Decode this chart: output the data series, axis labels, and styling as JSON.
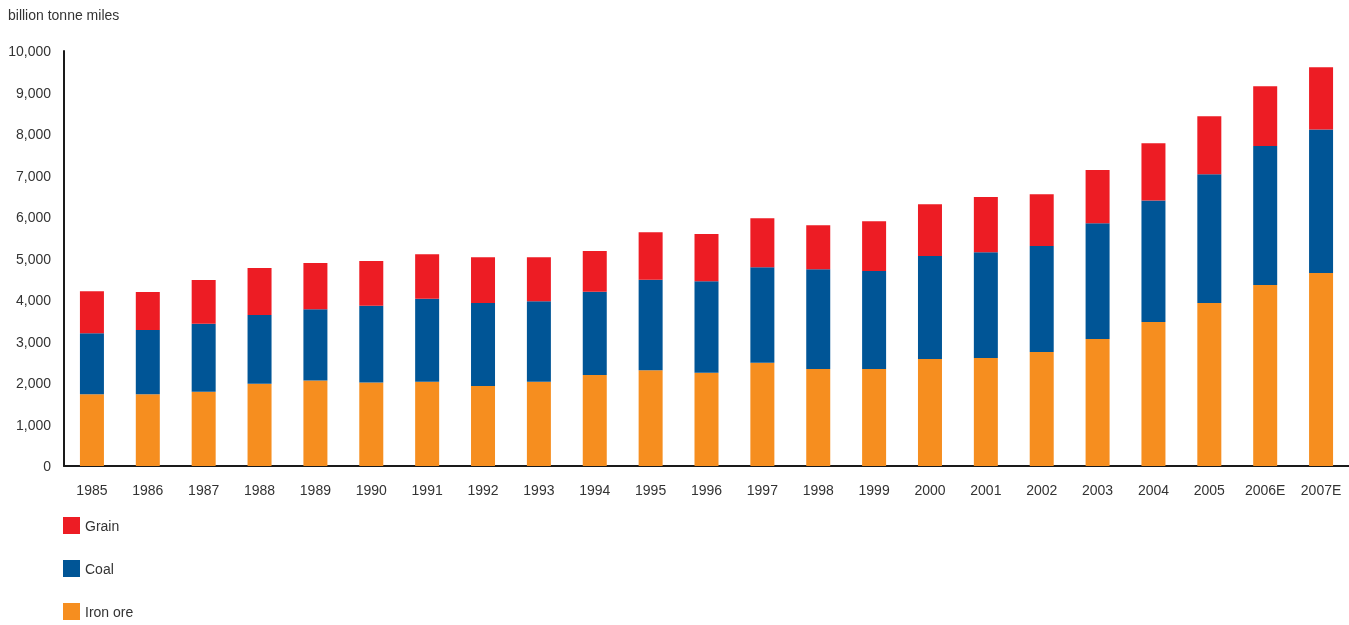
{
  "chart_data": {
    "type": "bar",
    "stacked": true,
    "ylabel": "billion tonne miles",
    "categories": [
      "1985",
      "1986",
      "1987",
      "1988",
      "1989",
      "1990",
      "1991",
      "1992",
      "1993",
      "1994",
      "1995",
      "1996",
      "1997",
      "1998",
      "1999",
      "2000",
      "2001",
      "2002",
      "2003",
      "2004",
      "2005",
      "2006E",
      "2007E"
    ],
    "series": [
      {
        "name": "Iron ore",
        "color": "#f68e1f",
        "values": [
          1730,
          1730,
          1790,
          1980,
          2060,
          2010,
          2030,
          1930,
          2030,
          2190,
          2310,
          2250,
          2490,
          2340,
          2340,
          2580,
          2600,
          2750,
          3060,
          3470,
          3930,
          4360,
          4650
        ]
      },
      {
        "name": "Coal",
        "color": "#005596",
        "values": [
          1470,
          1550,
          1640,
          1660,
          1720,
          1850,
          2000,
          2000,
          1940,
          2010,
          2180,
          2200,
          2300,
          2400,
          2360,
          2480,
          2550,
          2550,
          2790,
          2930,
          3100,
          3350,
          3460
        ]
      },
      {
        "name": "Grain",
        "color": "#ed1c24",
        "values": [
          1010,
          910,
          1050,
          1130,
          1110,
          1080,
          1070,
          1100,
          1060,
          980,
          1140,
          1140,
          1180,
          1060,
          1200,
          1250,
          1330,
          1250,
          1280,
          1380,
          1400,
          1440,
          1500
        ]
      }
    ],
    "ylim": [
      0,
      10000
    ],
    "yticks": [
      0,
      {
        "value": 1000,
        "label": "1,000"
      },
      {
        "value": 2000,
        "label": "2,000"
      },
      {
        "value": 3000,
        "label": "3,000"
      },
      {
        "value": 4000,
        "label": "4,000"
      },
      {
        "value": 5000,
        "label": "5,000"
      },
      {
        "value": 6000,
        "label": "6,000"
      },
      {
        "value": 7000,
        "label": "7,000"
      },
      {
        "value": 8000,
        "label": "8,000"
      },
      {
        "value": 9000,
        "label": "9,000"
      },
      {
        "value": 10000,
        "label": "10,000"
      }
    ],
    "legend": "bottom left"
  }
}
